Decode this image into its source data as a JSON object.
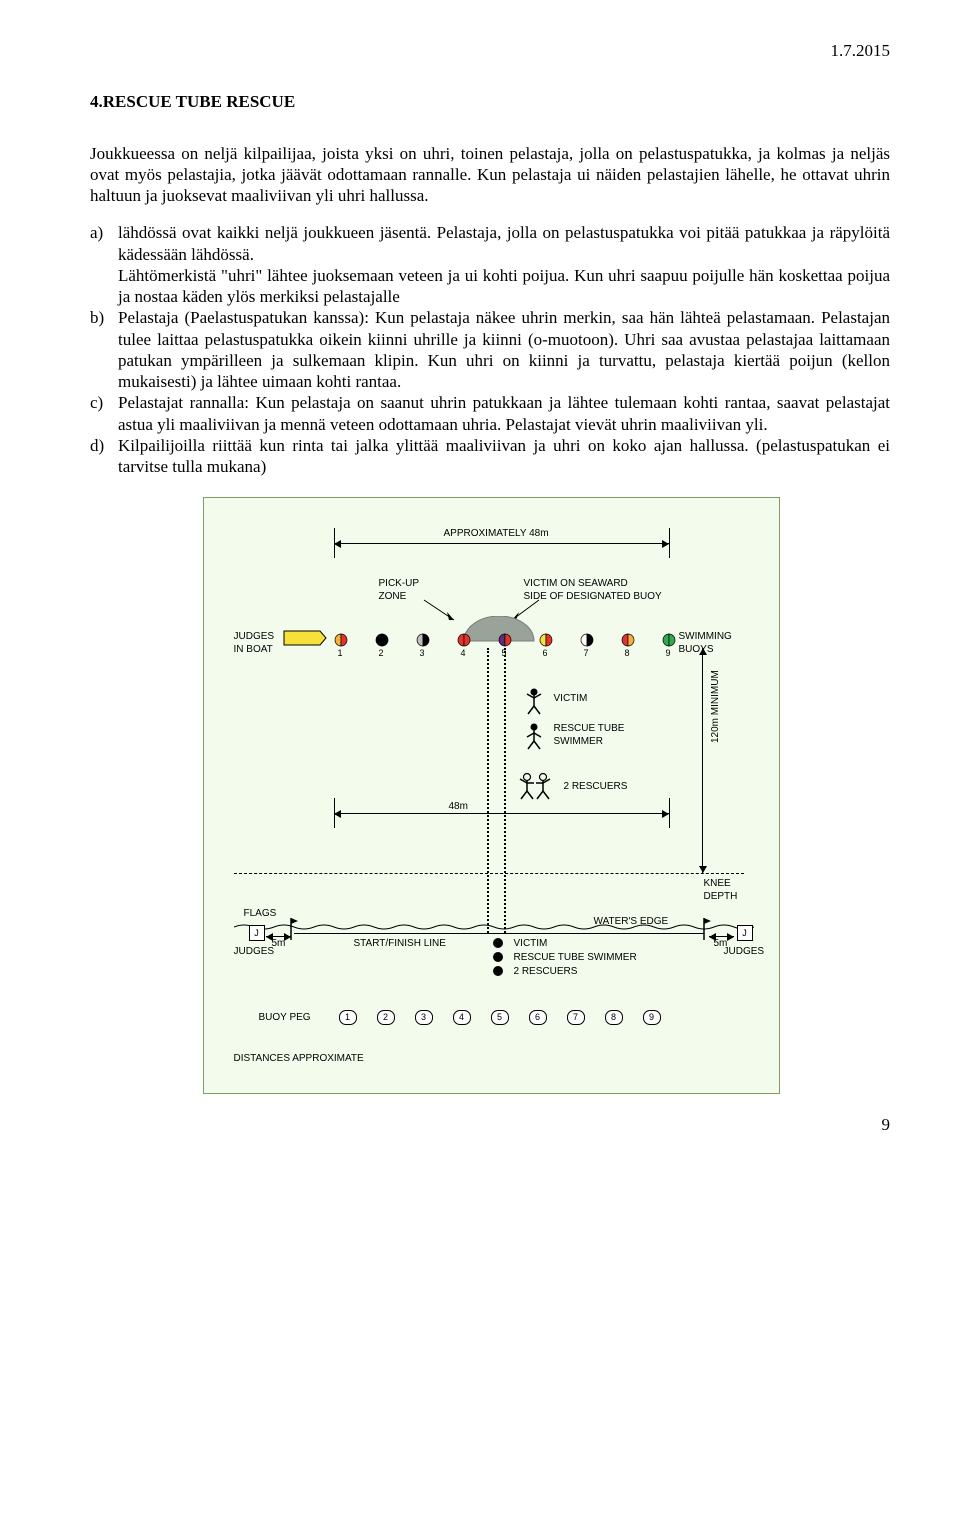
{
  "page": {
    "date": "1.7.2015",
    "heading": "4.RESCUE TUBE RESCUE",
    "intro": "Joukkueessa on neljä kilpailijaa, joista yksi on uhri, toinen pelastaja, jolla on pelastuspatukka, ja kolmas ja neljäs ovat myös pelastajia, jotka jäävät odottamaan rannalle. Kun pelastaja ui näiden pelastajien lähelle, he ottavat uhrin haltuun ja juoksevat maaliviivan yli uhri hallussa.",
    "items": {
      "a": "lähdössä ovat kaikki neljä joukkueen jäsentä. Pelastaja, jolla on pelastuspatukka voi pitää patukkaa ja räpylöitä kädessään lähdössä.\nLähtömerkistä \"uhri\" lähtee juoksemaan veteen ja ui kohti poijua. Kun uhri saapuu poijulle hän koskettaa poijua ja nostaa käden ylös merkiksi pelastajalle",
      "b": "Pelastaja (Paelastuspatukan kanssa): Kun pelastaja näkee uhrin merkin, saa hän lähteä pelastamaan. Pelastajan tulee laittaa pelastuspatukka oikein kiinni uhrille ja kiinni (o-muotoon). Uhri saa avustaa pelastajaa laittamaan patukan ympärilleen ja sulkemaan klipin. Kun uhri on kiinni ja turvattu, pelastaja kiertää poijun (kellon mukaisesti) ja lähtee uimaan kohti rantaa.",
      "c": "Pelastajat rannalla: Kun pelastaja on saanut uhrin patukkaan ja lähtee tulemaan  kohti rantaa, saavat pelastajat astua yli maaliviivan ja mennä veteen odottamaan uhria. Pelastajat vievät uhrin maaliviivan yli.",
      "d": "Kilpailijoilla riittää kun rinta tai jalka ylittää maaliviivan ja uhri on koko ajan hallussa. (pelastuspatukan ei tarvitse tulla mukana)"
    },
    "page_number": "9"
  },
  "diagram": {
    "labels": {
      "approx48": "APPROXIMATELY 48m",
      "pickup": "PICK-UP\nZONE",
      "victim_seaward": "VICTIM ON SEAWARD\nSIDE OF DESIGNATED BUOY",
      "judges_boat": "JUDGES\nIN BOAT",
      "swimming_buoys": "SWIMMING\nBUOYS",
      "victim": "VICTIM",
      "rescue_tube_swimmer": "RESCUE TUBE\nSWIMMER",
      "two_rescuers": "2 RESCUERS",
      "m48": "48m",
      "m120": "120m MINIMUM",
      "knee_depth": "KNEE\nDEPTH",
      "flags": "FLAGS",
      "judges": "JUDGES",
      "m5a": "5m",
      "m5b": "5m",
      "start_finish": "START/FINISH LINE",
      "waters_edge": "WATER'S EDGE",
      "victim2": "VICTIM",
      "rts2": "RESCUE TUBE SWIMMER",
      "rescuers2": "2 RESCUERS",
      "buoy_peg": "BUOY PEG",
      "distances": "DISTANCES APPROXIMATE",
      "J": "J"
    },
    "buoy_numbers": [
      "1",
      "2",
      "3",
      "4",
      "5",
      "6",
      "7",
      "8",
      "9"
    ],
    "buoy_colors": [
      {
        "left": "#f3b13a",
        "right": "#e2342b"
      },
      {
        "left": "#000000",
        "right": "#000000"
      },
      {
        "left": "#bdbdbd",
        "right": "#000000"
      },
      {
        "left": "#e2342b",
        "right": "#e2342b"
      },
      {
        "left": "#5a2e7a",
        "right": "#e2342b"
      },
      {
        "left": "#f6e13b",
        "right": "#e2342b"
      },
      {
        "left": "#ffffff",
        "right": "#000000"
      },
      {
        "left": "#e2342b",
        "right": "#f3b13a"
      },
      {
        "left": "#32a852",
        "right": "#32a852"
      }
    ],
    "colors": {
      "bg": "#f2fbec",
      "border": "#7da05e",
      "boat_fill": "#f6e13b",
      "boat_stroke": "#000000"
    }
  }
}
